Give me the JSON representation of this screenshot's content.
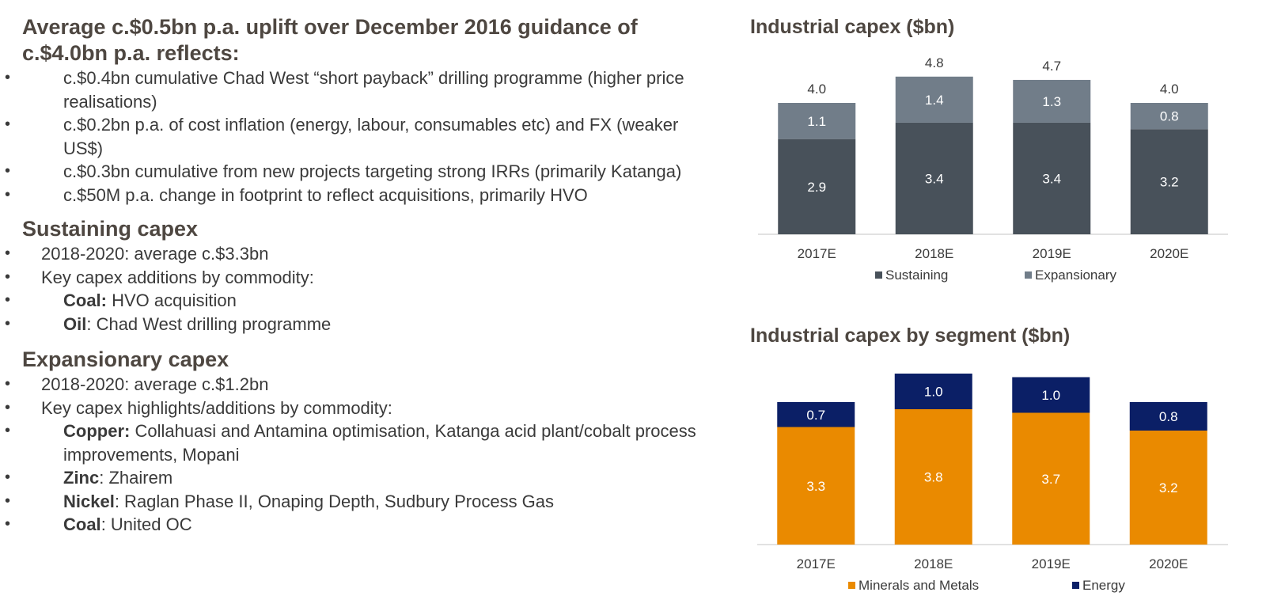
{
  "left": {
    "heading": "Average c.$0.5bn p.a. uplift over December 2016 guidance of c.$4.0bn p.a. reflects:",
    "uplift_items": [
      "c.$0.4bn cumulative Chad West  “short payback” drilling programme (higher price realisations)",
      "c.$0.2bn p.a. of cost inflation (energy, labour, consumables etc) and FX (weaker US$)",
      "c.$0.3bn cumulative from new projects targeting strong IRRs (primarily Katanga)",
      "c.$50M p.a. change in footprint to reflect acquisitions, primarily HVO"
    ],
    "sustaining": {
      "title": "Sustaining capex",
      "avg": "2018-2020: average c.$3.3bn",
      "additions_label": "Key capex additions by commodity:",
      "items": [
        {
          "commodity": "Coal:",
          "text": " HVO acquisition"
        },
        {
          "commodity": "Oil",
          "text": ": Chad West drilling programme"
        }
      ]
    },
    "expansionary": {
      "title": "Expansionary capex",
      "avg": "2018-2020: average c.$1.2bn",
      "additions_label": "Key capex highlights/additions by commodity:",
      "items": [
        {
          "commodity": "Copper:",
          "text": " Collahuasi and Antamina optimisation, Katanga acid plant/cobalt process improvements, Mopani"
        },
        {
          "commodity": "Zinc",
          "text": ": Zhairem"
        },
        {
          "commodity": "Nickel",
          "text": ": Raglan Phase II, Onaping Depth, Sudbury Process Gas"
        },
        {
          "commodity": "Coal",
          "text": ": United OC"
        }
      ]
    }
  },
  "chart_data": [
    {
      "type": "bar",
      "stacked": true,
      "title": "Industrial capex ($bn)",
      "categories": [
        "2017E",
        "2018E",
        "2019E",
        "2020E"
      ],
      "series": [
        {
          "name": "Sustaining",
          "values": [
            2.9,
            3.4,
            3.4,
            3.2
          ],
          "color": "#48515a",
          "label_color": "#ffffff"
        },
        {
          "name": "Expansionary",
          "values": [
            1.1,
            1.4,
            1.3,
            0.8
          ],
          "color": "#717d89",
          "label_color": "#ffffff"
        }
      ],
      "totals": [
        "4.0",
        "4.8",
        "4.7",
        "4.0"
      ],
      "ylim": [
        0,
        5
      ],
      "grid": false,
      "legend": "bottom"
    },
    {
      "type": "bar",
      "stacked": true,
      "title": "Industrial capex by segment ($bn)",
      "categories": [
        "2017E",
        "2018E",
        "2019E",
        "2020E"
      ],
      "series": [
        {
          "name": "Minerals and Metals",
          "values": [
            3.3,
            3.8,
            3.7,
            3.2
          ],
          "color": "#ea8a00",
          "label_color": "#ffffff"
        },
        {
          "name": "Energy",
          "values": [
            0.7,
            1.0,
            1.0,
            0.8
          ],
          "color": "#0b1f66",
          "label_color": "#ffffff"
        }
      ],
      "ylim": [
        0,
        5
      ],
      "grid": false,
      "legend": "bottom"
    }
  ]
}
